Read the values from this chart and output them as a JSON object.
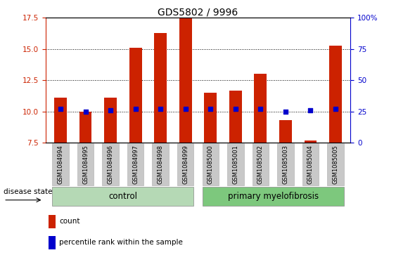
{
  "title": "GDS5802 / 9996",
  "samples": [
    "GSM1084994",
    "GSM1084995",
    "GSM1084996",
    "GSM1084997",
    "GSM1084998",
    "GSM1084999",
    "GSM1085000",
    "GSM1085001",
    "GSM1085002",
    "GSM1085003",
    "GSM1085004",
    "GSM1085005"
  ],
  "counts": [
    11.1,
    10.0,
    11.1,
    15.1,
    16.3,
    17.5,
    11.5,
    11.7,
    13.0,
    9.3,
    7.7,
    15.3
  ],
  "percentile_ranks": [
    27,
    25,
    26,
    27,
    27,
    27,
    27,
    27,
    27,
    25,
    26,
    27
  ],
  "bar_color": "#cc2200",
  "dot_color": "#0000cc",
  "ylim_left": [
    7.5,
    17.5
  ],
  "ylim_right": [
    0,
    100
  ],
  "yticks_left": [
    7.5,
    10.0,
    12.5,
    15.0,
    17.5
  ],
  "yticks_right": [
    0,
    25,
    50,
    75,
    100
  ],
  "bar_width": 0.5,
  "control_color": "#b5d9b5",
  "disease_color": "#7dc87d",
  "title_fontsize": 10,
  "tick_fontsize": 7.5,
  "label_fontsize": 8.5
}
